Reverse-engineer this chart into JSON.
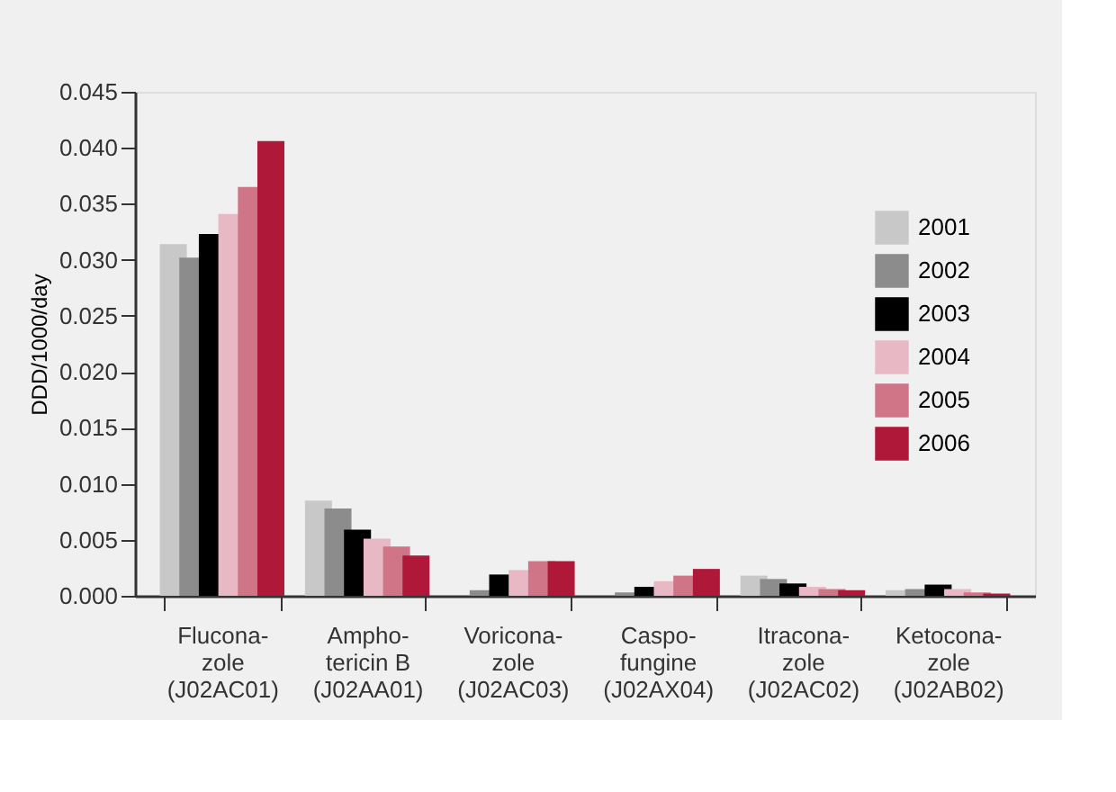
{
  "chart_data": {
    "type": "bar",
    "ylabel": "DDD/1000/day",
    "categories": [
      "Flucona-\nzole\n(J02AC01)",
      "Ampho-\ntericin B\n(J02AA01)",
      "Voricona-\nzole\n(J02AC03)",
      "Caspo-\nfungine\n(J02AX04)",
      "Itracona-\nzole\n(J02AC02)",
      "Ketocona-\nzole\n(J02AB02)"
    ],
    "series": [
      {
        "name": "2001",
        "color": "#c8c8c8",
        "values": [
          0.0314,
          0.0085,
          0.0,
          0.0,
          0.0018,
          0.0005
        ]
      },
      {
        "name": "2002",
        "color": "#8c8c8c",
        "values": [
          0.0302,
          0.0078,
          0.0005,
          0.0003,
          0.0015,
          0.0006
        ]
      },
      {
        "name": "2003",
        "color": "#000000",
        "values": [
          0.0323,
          0.0059,
          0.0019,
          0.0008,
          0.0011,
          0.001
        ]
      },
      {
        "name": "2004",
        "color": "#e8b8c4",
        "values": [
          0.0341,
          0.0051,
          0.0023,
          0.0013,
          0.0008,
          0.0006
        ]
      },
      {
        "name": "2005",
        "color": "#d07488",
        "values": [
          0.0365,
          0.0044,
          0.0031,
          0.0018,
          0.0006,
          0.0003
        ]
      },
      {
        "name": "2006",
        "color": "#b0183a",
        "values": [
          0.0406,
          0.0036,
          0.0031,
          0.0024,
          0.0005,
          0.0002
        ]
      }
    ],
    "ylim": [
      0,
      0.045
    ],
    "yticks": [
      {
        "value": 0,
        "label": "0.000"
      },
      0.005,
      {
        "value": 0.01,
        "label": "0.010"
      },
      0.015,
      {
        "value": 0.02,
        "label": "0.020"
      },
      0.025,
      {
        "value": 0.03,
        "label": "0.030"
      },
      0.035,
      {
        "value": 0.04,
        "label": "0.040"
      },
      0.045
    ],
    "grid": false,
    "legend": "right"
  }
}
